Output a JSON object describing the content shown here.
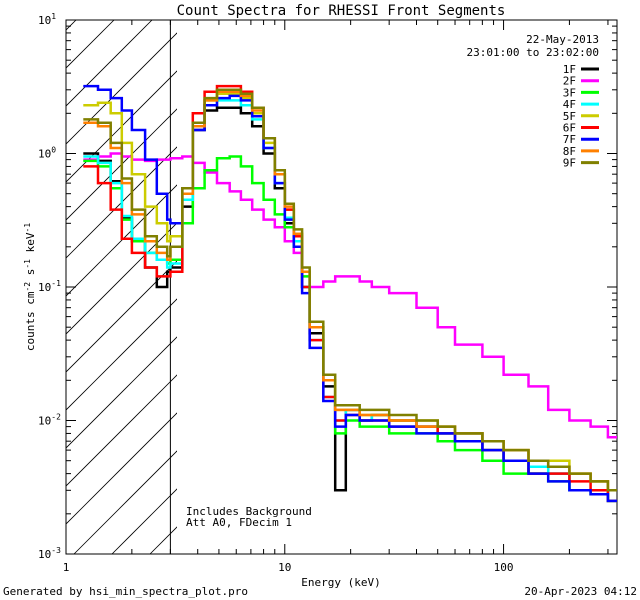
{
  "chart_data": {
    "type": "line",
    "title": "Count Spectra for RHESSI Front Segments",
    "xlabel": "Energy (keV)",
    "ylabel_parts": {
      "base": "counts cm",
      "exp1": "-2",
      "s": " s",
      "exp2": "-1",
      "kev": " keV",
      "exp3": "-1"
    },
    "x_scale": "log",
    "y_scale": "log",
    "xlim": [
      1,
      330
    ],
    "ylim": [
      0.001,
      10
    ],
    "x_tick_labels": [
      {
        "value": 1,
        "label": "1"
      },
      {
        "value": 10,
        "label": "10"
      },
      {
        "value": 100,
        "label": "100"
      }
    ],
    "y_tick_labels": [
      {
        "value": 10,
        "base": "10",
        "exp": "1"
      },
      {
        "value": 1,
        "base": "10",
        "exp": "0"
      },
      {
        "value": 0.1,
        "base": "10",
        "exp": "-1"
      },
      {
        "value": 0.01,
        "base": "10",
        "exp": "-2"
      },
      {
        "value": 0.001,
        "base": "10",
        "exp": "-3"
      }
    ],
    "hatched_region": {
      "x_min": 1,
      "x_max": 3
    },
    "date": "22-May-2013",
    "time_range": "23:01:00 to 23:02:00",
    "annotations": [
      "Includes Background",
      "Att A0, FDecim 1"
    ],
    "footer_left": "Generated by hsi_min_spectra_plot.pro",
    "footer_right": "20-Apr-2023 04:12",
    "x": [
      1.2,
      1.4,
      1.6,
      1.8,
      2.0,
      2.3,
      2.6,
      2.9,
      3.0,
      3.4,
      3.8,
      4.3,
      4.9,
      5.6,
      6.3,
      7.1,
      8.0,
      9.0,
      10.0,
      11.0,
      12.0,
      13.0,
      15.0,
      17.0,
      19.0,
      22.0,
      25.0,
      30.0,
      40.0,
      50.0,
      60.0,
      80.0,
      100.0,
      130.0,
      160.0,
      200.0,
      250.0,
      300.0
    ],
    "series": [
      {
        "name": "1F",
        "color": "#000000",
        "values": [
          1.0,
          0.88,
          0.62,
          0.33,
          0.22,
          0.14,
          0.1,
          0.13,
          0.14,
          0.4,
          1.5,
          2.1,
          2.2,
          2.2,
          2.0,
          1.6,
          1.0,
          0.55,
          0.3,
          0.2,
          0.1,
          0.045,
          0.018,
          0.003,
          0.012,
          0.01,
          0.011,
          0.01,
          0.009,
          0.008,
          0.008,
          0.006,
          0.005,
          0.004,
          0.004,
          0.003,
          0.003,
          0.0025
        ]
      },
      {
        "name": "2F",
        "color": "#ff00ff",
        "values": [
          0.9,
          0.95,
          1.0,
          0.95,
          0.9,
          0.88,
          0.9,
          0.9,
          0.92,
          0.95,
          0.85,
          0.72,
          0.6,
          0.52,
          0.45,
          0.38,
          0.32,
          0.28,
          0.22,
          0.18,
          0.13,
          0.1,
          0.11,
          0.12,
          0.12,
          0.11,
          0.1,
          0.09,
          0.07,
          0.05,
          0.037,
          0.03,
          0.022,
          0.018,
          0.012,
          0.01,
          0.009,
          0.0075
        ]
      },
      {
        "name": "3F",
        "color": "#00ff00",
        "values": [
          0.88,
          0.8,
          0.55,
          0.32,
          0.22,
          0.18,
          0.16,
          0.15,
          0.16,
          0.3,
          0.55,
          0.75,
          0.92,
          0.95,
          0.8,
          0.6,
          0.45,
          0.35,
          0.28,
          0.2,
          0.12,
          0.05,
          0.02,
          0.008,
          0.01,
          0.009,
          0.009,
          0.008,
          0.008,
          0.007,
          0.006,
          0.005,
          0.004,
          0.004,
          0.0035,
          0.003,
          0.0028,
          0.0025
        ]
      },
      {
        "name": "4F",
        "color": "#00ffff",
        "values": [
          0.95,
          0.85,
          0.6,
          0.34,
          0.23,
          0.18,
          0.16,
          0.14,
          0.15,
          0.45,
          1.6,
          2.3,
          2.5,
          2.5,
          2.3,
          1.8,
          1.1,
          0.6,
          0.33,
          0.22,
          0.1,
          0.04,
          0.015,
          0.01,
          0.012,
          0.01,
          0.011,
          0.009,
          0.009,
          0.008,
          0.007,
          0.006,
          0.005,
          0.0045,
          0.004,
          0.003,
          0.003,
          0.0025
        ]
      },
      {
        "name": "5F",
        "color": "#cccc00",
        "values": [
          2.3,
          2.4,
          2.0,
          1.2,
          0.7,
          0.4,
          0.3,
          0.22,
          0.24,
          0.5,
          1.6,
          2.5,
          2.8,
          2.8,
          2.6,
          2.0,
          1.2,
          0.7,
          0.38,
          0.25,
          0.13,
          0.05,
          0.02,
          0.012,
          0.012,
          0.011,
          0.011,
          0.01,
          0.01,
          0.009,
          0.008,
          0.007,
          0.006,
          0.005,
          0.005,
          0.004,
          0.0035,
          0.003
        ]
      },
      {
        "name": "6F",
        "color": "#ff0000",
        "values": [
          0.8,
          0.6,
          0.38,
          0.23,
          0.18,
          0.14,
          0.12,
          0.12,
          0.13,
          0.55,
          2.0,
          2.9,
          3.2,
          3.2,
          2.9,
          2.2,
          1.3,
          0.7,
          0.38,
          0.24,
          0.1,
          0.04,
          0.015,
          0.01,
          0.011,
          0.01,
          0.01,
          0.009,
          0.009,
          0.008,
          0.007,
          0.006,
          0.005,
          0.004,
          0.004,
          0.0035,
          0.003,
          0.0025
        ]
      },
      {
        "name": "7F",
        "color": "#0000ff",
        "values": [
          3.2,
          3.0,
          2.6,
          2.1,
          1.5,
          0.9,
          0.5,
          0.32,
          0.3,
          0.55,
          1.5,
          2.3,
          2.6,
          2.7,
          2.5,
          1.9,
          1.1,
          0.6,
          0.32,
          0.2,
          0.09,
          0.035,
          0.014,
          0.009,
          0.011,
          0.01,
          0.01,
          0.009,
          0.008,
          0.008,
          0.007,
          0.006,
          0.005,
          0.004,
          0.0035,
          0.003,
          0.0028,
          0.0025
        ]
      },
      {
        "name": "8F",
        "color": "#ff8000",
        "values": [
          1.7,
          1.6,
          1.1,
          0.6,
          0.35,
          0.22,
          0.18,
          0.16,
          0.2,
          0.5,
          1.6,
          2.5,
          2.9,
          2.9,
          2.7,
          2.1,
          1.3,
          0.7,
          0.4,
          0.25,
          0.13,
          0.05,
          0.02,
          0.012,
          0.012,
          0.011,
          0.011,
          0.01,
          0.009,
          0.009,
          0.008,
          0.007,
          0.006,
          0.005,
          0.0045,
          0.004,
          0.0035,
          0.003
        ]
      },
      {
        "name": "9F",
        "color": "#808000",
        "values": [
          1.8,
          1.7,
          1.2,
          0.65,
          0.38,
          0.24,
          0.2,
          0.17,
          0.2,
          0.55,
          1.7,
          2.6,
          3.0,
          3.0,
          2.8,
          2.2,
          1.3,
          0.75,
          0.42,
          0.27,
          0.14,
          0.055,
          0.022,
          0.013,
          0.013,
          0.012,
          0.012,
          0.011,
          0.01,
          0.009,
          0.008,
          0.007,
          0.006,
          0.005,
          0.0045,
          0.004,
          0.0035,
          0.003
        ]
      }
    ]
  }
}
